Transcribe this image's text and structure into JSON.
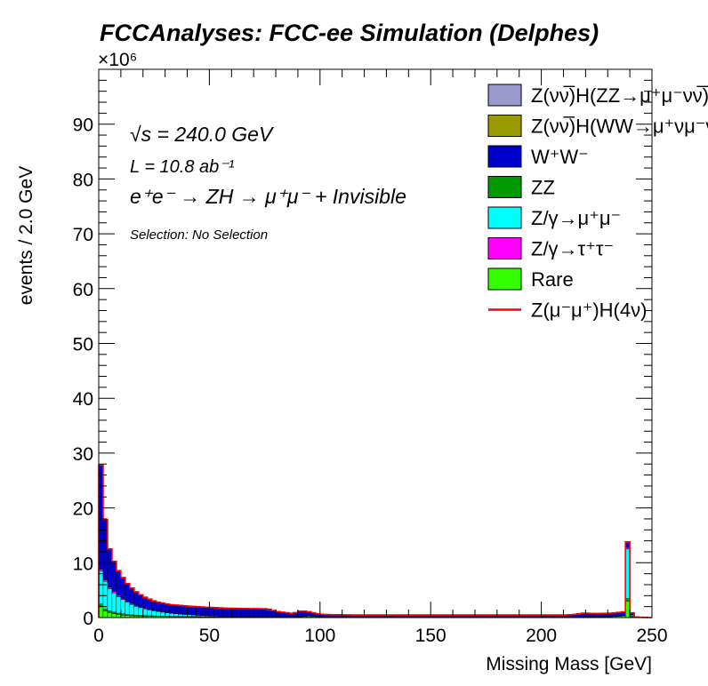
{
  "chart_data": {
    "type": "bar",
    "title": "FCCAnalyses: FCC-ee Simulation (Delphes)",
    "xlabel": "Missing Mass [GeV]",
    "ylabel": "events / 2.0 GeV",
    "y_multiplier": "×10⁶",
    "xlim": [
      0,
      250
    ],
    "ylim": [
      0,
      100000000
    ],
    "x_ticks": [
      "0",
      "50",
      "100",
      "150",
      "200",
      "250"
    ],
    "y_ticks": [
      "0",
      "10",
      "20",
      "30",
      "40",
      "50",
      "60",
      "70",
      "80",
      "90"
    ],
    "bin_width": 2.0,
    "stacked": true,
    "annotations": {
      "sqrt_s": "√s = 240.0 GeV",
      "lumi": "L = 10.8 ab⁻¹",
      "process": "e⁺e⁻ → ZH → μ⁺μ⁻ + Invisible",
      "selection": "Selection: No Selection"
    },
    "series": [
      {
        "name": "Rare",
        "color": "#33ff00",
        "values": [
          2000000,
          1200000,
          900000,
          700000,
          550000,
          450000,
          380000,
          320000,
          280000,
          250000,
          230000,
          210000,
          200000,
          190000,
          180000,
          170000,
          160000,
          155000,
          150000,
          145000,
          140000,
          135000,
          130000,
          125000,
          120000,
          115000,
          110000,
          105000,
          100000,
          95000,
          90000,
          85000,
          80000,
          75000,
          70000,
          65000,
          60000,
          55000,
          50000,
          45000,
          40000,
          35000,
          30000,
          28000,
          26000,
          25000,
          24000,
          23000,
          22000,
          21000,
          20000,
          20000,
          20000,
          20000,
          20000,
          20000,
          20000,
          20000,
          20000,
          20000,
          20000,
          20000,
          20000,
          20000,
          20000,
          20000,
          20000,
          20000,
          20000,
          20000,
          20000,
          20000,
          20000,
          20000,
          20000,
          20000,
          20000,
          20000,
          20000,
          20000,
          20000,
          20000,
          20000,
          20000,
          20000,
          20000,
          20000,
          20000,
          20000,
          20000,
          20000,
          20000,
          20000,
          20000,
          20000,
          20000,
          20000,
          20000,
          20000,
          20000,
          20000,
          20000,
          20000,
          20000,
          20000,
          20000,
          20000,
          25000,
          30000,
          40000,
          50000,
          60000,
          80000,
          100000,
          120000,
          150000,
          200000,
          250000,
          300000,
          3000000,
          150000,
          20000,
          10000,
          5000,
          0
        ]
      },
      {
        "name": "ZZ",
        "color": "#009900",
        "values": [
          500000,
          400000,
          350000,
          300000,
          260000,
          230000,
          200000,
          180000,
          160000,
          150000,
          140000,
          130000,
          120000,
          110000,
          100000,
          95000,
          90000,
          85000,
          80000,
          75000,
          70000,
          65000,
          60000,
          55000,
          50000,
          45000,
          40000,
          35000,
          30000,
          25000,
          20000,
          20000,
          20000,
          20000,
          20000,
          20000,
          20000,
          20000,
          20000,
          20000,
          20000,
          20000,
          20000,
          30000,
          50000,
          100000,
          200000,
          300000,
          200000,
          100000,
          50000,
          30000,
          20000,
          20000,
          20000,
          20000,
          20000,
          20000,
          20000,
          20000,
          20000,
          20000,
          20000,
          20000,
          20000,
          20000,
          20000,
          20000,
          20000,
          20000,
          20000,
          20000,
          20000,
          20000,
          20000,
          20000,
          20000,
          20000,
          20000,
          20000,
          20000,
          20000,
          20000,
          20000,
          20000,
          20000,
          20000,
          20000,
          20000,
          20000,
          20000,
          20000,
          20000,
          20000,
          20000,
          20000,
          20000,
          20000,
          20000,
          20000,
          20000,
          20000,
          20000,
          20000,
          20000,
          20000,
          20000,
          20000,
          20000,
          20000,
          20000,
          20000,
          20000,
          20000,
          20000,
          20000,
          20000,
          20000,
          20000,
          500000,
          100000,
          20000,
          10000,
          5000,
          0
        ]
      },
      {
        "name": "Z/γ→μ⁺μ⁻",
        "color": "#00ffff",
        "values": [
          6000000,
          5000000,
          4000000,
          3500000,
          3000000,
          2600000,
          2200000,
          1900000,
          1600000,
          1400000,
          1200000,
          1050000,
          900000,
          800000,
          700000,
          600000,
          500000,
          450000,
          400000,
          350000,
          300000,
          260000,
          220000,
          190000,
          160000,
          140000,
          120000,
          100000,
          80000,
          60000,
          50000,
          40000,
          30000,
          20000,
          10000,
          5000,
          0,
          0,
          0,
          0,
          0,
          0,
          0,
          0,
          0,
          0,
          0,
          0,
          0,
          0,
          0,
          0,
          0,
          0,
          0,
          0,
          0,
          0,
          0,
          0,
          0,
          0,
          0,
          0,
          0,
          0,
          0,
          0,
          0,
          0,
          0,
          0,
          0,
          0,
          0,
          0,
          0,
          0,
          0,
          0,
          0,
          0,
          0,
          0,
          0,
          0,
          0,
          0,
          0,
          0,
          0,
          0,
          0,
          0,
          0,
          0,
          0,
          0,
          0,
          0,
          0,
          0,
          0,
          0,
          0,
          0,
          0,
          0,
          0,
          0,
          0,
          0,
          0,
          0,
          0,
          0,
          0,
          0,
          0,
          9000000,
          200000,
          0,
          0,
          0,
          0
        ]
      },
      {
        "name": "Z/γ→τ⁺τ⁻",
        "color": "#ff00ff",
        "values": [
          300000,
          300000,
          280000,
          260000,
          240000,
          220000,
          200000,
          180000,
          160000,
          150000,
          140000,
          130000,
          120000,
          110000,
          100000,
          95000,
          90000,
          85000,
          80000,
          75000,
          70000,
          65000,
          60000,
          55000,
          50000,
          45000,
          40000,
          35000,
          30000,
          30000,
          30000,
          30000,
          30000,
          30000,
          30000,
          30000,
          30000,
          30000,
          30000,
          30000,
          30000,
          30000,
          30000,
          30000,
          30000,
          30000,
          30000,
          30000,
          30000,
          30000,
          30000,
          30000,
          30000,
          30000,
          30000,
          30000,
          30000,
          30000,
          30000,
          30000,
          30000,
          30000,
          30000,
          30000,
          30000,
          30000,
          30000,
          30000,
          30000,
          30000,
          30000,
          30000,
          30000,
          30000,
          30000,
          30000,
          30000,
          30000,
          30000,
          30000,
          30000,
          30000,
          30000,
          30000,
          30000,
          30000,
          30000,
          30000,
          30000,
          30000,
          30000,
          30000,
          30000,
          30000,
          30000,
          30000,
          30000,
          30000,
          30000,
          30000,
          30000,
          30000,
          30000,
          30000,
          30000,
          30000,
          30000,
          30000,
          30000,
          30000,
          30000,
          30000,
          30000,
          30000,
          30000,
          30000,
          30000,
          30000,
          30000,
          300000,
          100000,
          20000,
          10000,
          5000,
          0
        ]
      },
      {
        "name": "W⁺W⁻",
        "color": "#0000cc",
        "values": [
          19000000,
          11000000,
          7000000,
          5500000,
          4500000,
          3800000,
          3200000,
          2800000,
          2500000,
          2200000,
          2000000,
          1850000,
          1700000,
          1600000,
          1550000,
          1500000,
          1500000,
          1500000,
          1500000,
          1500000,
          1500000,
          1500000,
          1500000,
          1500000,
          1500000,
          1500000,
          1500000,
          1500000,
          1500000,
          1500000,
          1500000,
          1500000,
          1500000,
          1500000,
          1500000,
          1500000,
          1500000,
          1500000,
          1400000,
          1200000,
          1000000,
          900000,
          800000,
          700000,
          800000,
          1000000,
          900000,
          700000,
          600000,
          550000,
          500000,
          480000,
          460000,
          450000,
          440000,
          430000,
          420000,
          410000,
          400000,
          400000,
          400000,
          400000,
          400000,
          400000,
          400000,
          400000,
          400000,
          400000,
          400000,
          400000,
          400000,
          400000,
          400000,
          400000,
          400000,
          400000,
          400000,
          400000,
          400000,
          400000,
          400000,
          400000,
          400000,
          400000,
          400000,
          400000,
          400000,
          400000,
          400000,
          400000,
          400000,
          400000,
          400000,
          400000,
          400000,
          400000,
          400000,
          400000,
          400000,
          400000,
          400000,
          400000,
          400000,
          400000,
          400000,
          400000,
          450000,
          500000,
          600000,
          700000,
          700000,
          650000,
          600000,
          600000,
          600000,
          600000,
          600000,
          650000,
          700000,
          1000000,
          300000,
          50000,
          20000,
          10000,
          0
        ]
      },
      {
        "name": "Z(νν̅)H(WW→μ⁺νμ⁻ν)",
        "color": "#999900",
        "values": [
          2000,
          2000,
          2000,
          2000,
          2000,
          2000,
          2000,
          2000,
          2000,
          2000,
          2000,
          2000,
          2000,
          2000,
          2000,
          2000,
          2000,
          2000,
          2000,
          2000,
          2000,
          2000,
          2000,
          2000,
          2000,
          2000,
          2000,
          2000,
          2000,
          2000,
          2000,
          2000,
          2000,
          2000,
          2000,
          2000,
          2000,
          2000,
          2000,
          2000,
          2000,
          2000,
          2000,
          2000,
          2000,
          2000,
          2000,
          2000,
          2000,
          2000,
          2000,
          2000,
          2000,
          2000,
          2000,
          2000,
          2000,
          2000,
          2000,
          2000,
          2000,
          2000,
          2000,
          2000,
          2000,
          2000,
          2000,
          2000,
          2000,
          2000,
          2000,
          2000,
          2000,
          2000,
          2000,
          2000,
          2000,
          2000,
          2000,
          2000,
          2000,
          2000,
          2000,
          2000,
          2000,
          2000,
          2000,
          2000,
          2000,
          2000,
          2000,
          2000,
          2000,
          2000,
          2000,
          2000,
          2000,
          2000,
          2000,
          2000,
          2000,
          2000,
          2000,
          2000,
          2000,
          2000,
          2000,
          2000,
          2000,
          2000,
          2000,
          2000,
          2000,
          2000,
          2000,
          2000,
          2000,
          2000,
          2000,
          2000,
          2000,
          2000,
          2000,
          2000,
          0
        ]
      },
      {
        "name": "Z(νν̅)H(ZZ→μ⁺μ⁻νν̅)",
        "color": "#9999cc",
        "values": [
          1000,
          1000,
          1000,
          1000,
          1000,
          1000,
          1000,
          1000,
          1000,
          1000,
          1000,
          1000,
          1000,
          1000,
          1000,
          1000,
          1000,
          1000,
          1000,
          1000,
          1000,
          1000,
          1000,
          1000,
          1000,
          1000,
          1000,
          1000,
          1000,
          1000,
          1000,
          1000,
          1000,
          1000,
          1000,
          1000,
          1000,
          1000,
          1000,
          1000,
          1000,
          1000,
          1000,
          1000,
          1000,
          1000,
          1000,
          1000,
          1000,
          1000,
          1000,
          1000,
          1000,
          1000,
          1000,
          1000,
          1000,
          1000,
          1000,
          1000,
          1000,
          1000,
          1000,
          1000,
          1000,
          1000,
          1000,
          1000,
          1000,
          1000,
          1000,
          1000,
          1000,
          1000,
          1000,
          1000,
          1000,
          1000,
          1000,
          1000,
          1000,
          1000,
          1000,
          1000,
          1000,
          1000,
          1000,
          1000,
          1000,
          1000,
          1000,
          1000,
          1000,
          1000,
          1000,
          1000,
          1000,
          1000,
          1000,
          1000,
          1000,
          1000,
          1000,
          1000,
          1000,
          1000,
          1000,
          1000,
          1000,
          1000,
          1000,
          1000,
          1000,
          1000,
          1000,
          1000,
          1000,
          1000,
          1000,
          1000,
          1000,
          1000,
          1000,
          1000,
          0
        ]
      }
    ],
    "signal": {
      "name": "Z(μ⁻μ⁺)H(4ν)",
      "color": "#ff0000",
      "style": "line"
    },
    "legend": [
      {
        "name": "Z(νν̅)H(ZZ→μ⁺μ⁻νν̅)",
        "color": "#9999cc",
        "kind": "box"
      },
      {
        "name": "Z(νν̅)H(WW→μ⁺νμ⁻ν)",
        "color": "#999900",
        "kind": "box"
      },
      {
        "name": "W⁺W⁻",
        "color": "#0000cc",
        "kind": "box"
      },
      {
        "name": "ZZ",
        "color": "#009900",
        "kind": "box"
      },
      {
        "name": "Z/γ→μ⁺μ⁻",
        "color": "#00ffff",
        "kind": "box"
      },
      {
        "name": "Z/γ→τ⁺τ⁻",
        "color": "#ff00ff",
        "kind": "box"
      },
      {
        "name": "Rare",
        "color": "#33ff00",
        "kind": "box"
      },
      {
        "name": "Z(μ⁻μ⁺)H(4ν)",
        "color": "#ff0000",
        "kind": "line"
      }
    ],
    "legend_position": "top-right",
    "grid": false
  }
}
